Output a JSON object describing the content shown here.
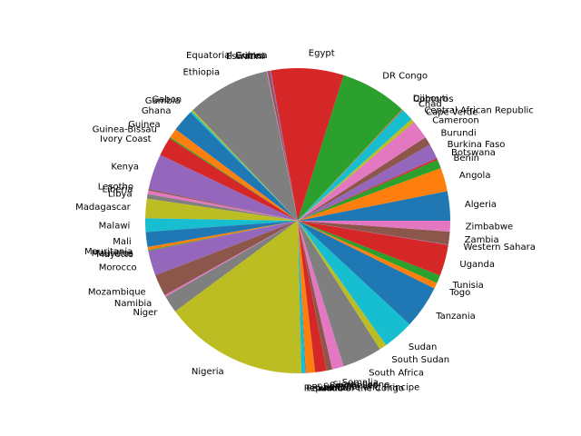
{
  "chart_data": {
    "type": "pie",
    "title": "",
    "start_angle_deg": 0,
    "direction": "counterclockwise",
    "slices": [
      {
        "label": "Algeria",
        "value": 44.6
      },
      {
        "label": "Angola",
        "value": 35.6
      },
      {
        "label": "Benin",
        "value": 13.4
      },
      {
        "label": "Botswana",
        "value": 2.6
      },
      {
        "label": "Burkina Faso",
        "value": 22.7
      },
      {
        "label": "Burundi",
        "value": 12.9
      },
      {
        "label": "Cameroon",
        "value": 28.0
      },
      {
        "label": "Cape Verde",
        "value": 0.6
      },
      {
        "label": "Central African Republic",
        "value": 5.5
      },
      {
        "label": "Chad",
        "value": 18.3
      },
      {
        "label": "Comoros",
        "value": 0.9
      },
      {
        "label": "Djibouti",
        "value": 1.1
      },
      {
        "label": "DR Congo",
        "value": 102.0
      },
      {
        "label": "Egypt",
        "value": 110.0
      },
      {
        "label": "Equatorial Guinea",
        "value": 1.7
      },
      {
        "label": "Eritrea",
        "value": 3.7
      },
      {
        "label": "Eswatini",
        "value": 1.2
      },
      {
        "label": "Ethiopia",
        "value": 126.0
      },
      {
        "label": "Gabon",
        "value": 2.4
      },
      {
        "label": "Gambia",
        "value": 2.7
      },
      {
        "label": "Ghana",
        "value": 33.5
      },
      {
        "label": "Guinea",
        "value": 14.2
      },
      {
        "label": "Guinea-Bissau",
        "value": 2.1
      },
      {
        "label": "Ivory Coast",
        "value": 28.2
      },
      {
        "label": "Kenya",
        "value": 54.0
      },
      {
        "label": "Lesotho",
        "value": 2.3
      },
      {
        "label": "Liberia",
        "value": 5.4
      },
      {
        "label": "Libya",
        "value": 6.9
      },
      {
        "label": "Madagascar",
        "value": 29.6
      },
      {
        "label": "Malawi",
        "value": 20.4
      },
      {
        "label": "Mali",
        "value": 22.6
      },
      {
        "label": "Mauritania",
        "value": 4.7
      },
      {
        "label": "Mauritius",
        "value": 1.3
      },
      {
        "label": "Mayotte",
        "value": 0.3
      },
      {
        "label": "Morocco",
        "value": 37.5
      },
      {
        "label": "Mozambique",
        "value": 33.0
      },
      {
        "label": "Namibia",
        "value": 2.6
      },
      {
        "label": "Niger",
        "value": 26.2
      },
      {
        "label": "Nigeria",
        "value": 218.0
      },
      {
        "label": "Republic of the Congo",
        "value": 5.9
      },
      {
        "label": "Reunion",
        "value": 0.9
      },
      {
        "label": "Rwanda",
        "value": 13.8
      },
      {
        "label": "Sao Tome and Principe",
        "value": 0.2
      },
      {
        "label": "Senegal",
        "value": 17.3
      },
      {
        "label": "Seychelles",
        "value": 0.1
      },
      {
        "label": "Sierra Leone",
        "value": 8.6
      },
      {
        "label": "Somalia",
        "value": 17.6
      },
      {
        "label": "South Africa",
        "value": 60.0
      },
      {
        "label": "South Sudan",
        "value": 11.0
      },
      {
        "label": "Sudan",
        "value": 46.9
      },
      {
        "label": "Tanzania",
        "value": 65.5
      },
      {
        "label": "Togo",
        "value": 8.8
      },
      {
        "label": "Tunisia",
        "value": 12.3
      },
      {
        "label": "Uganda",
        "value": 47.2
      },
      {
        "label": "Western Sahara",
        "value": 0.6
      },
      {
        "label": "Zambia",
        "value": 19.5
      },
      {
        "label": "Zimbabwe",
        "value": 16.3
      }
    ],
    "colors": [
      "#1f77b4",
      "#ff7f0e",
      "#2ca02c",
      "#d62728",
      "#9467bd",
      "#8c564b",
      "#e377c2",
      "#7f7f7f",
      "#bcbd22",
      "#17becf"
    ]
  }
}
